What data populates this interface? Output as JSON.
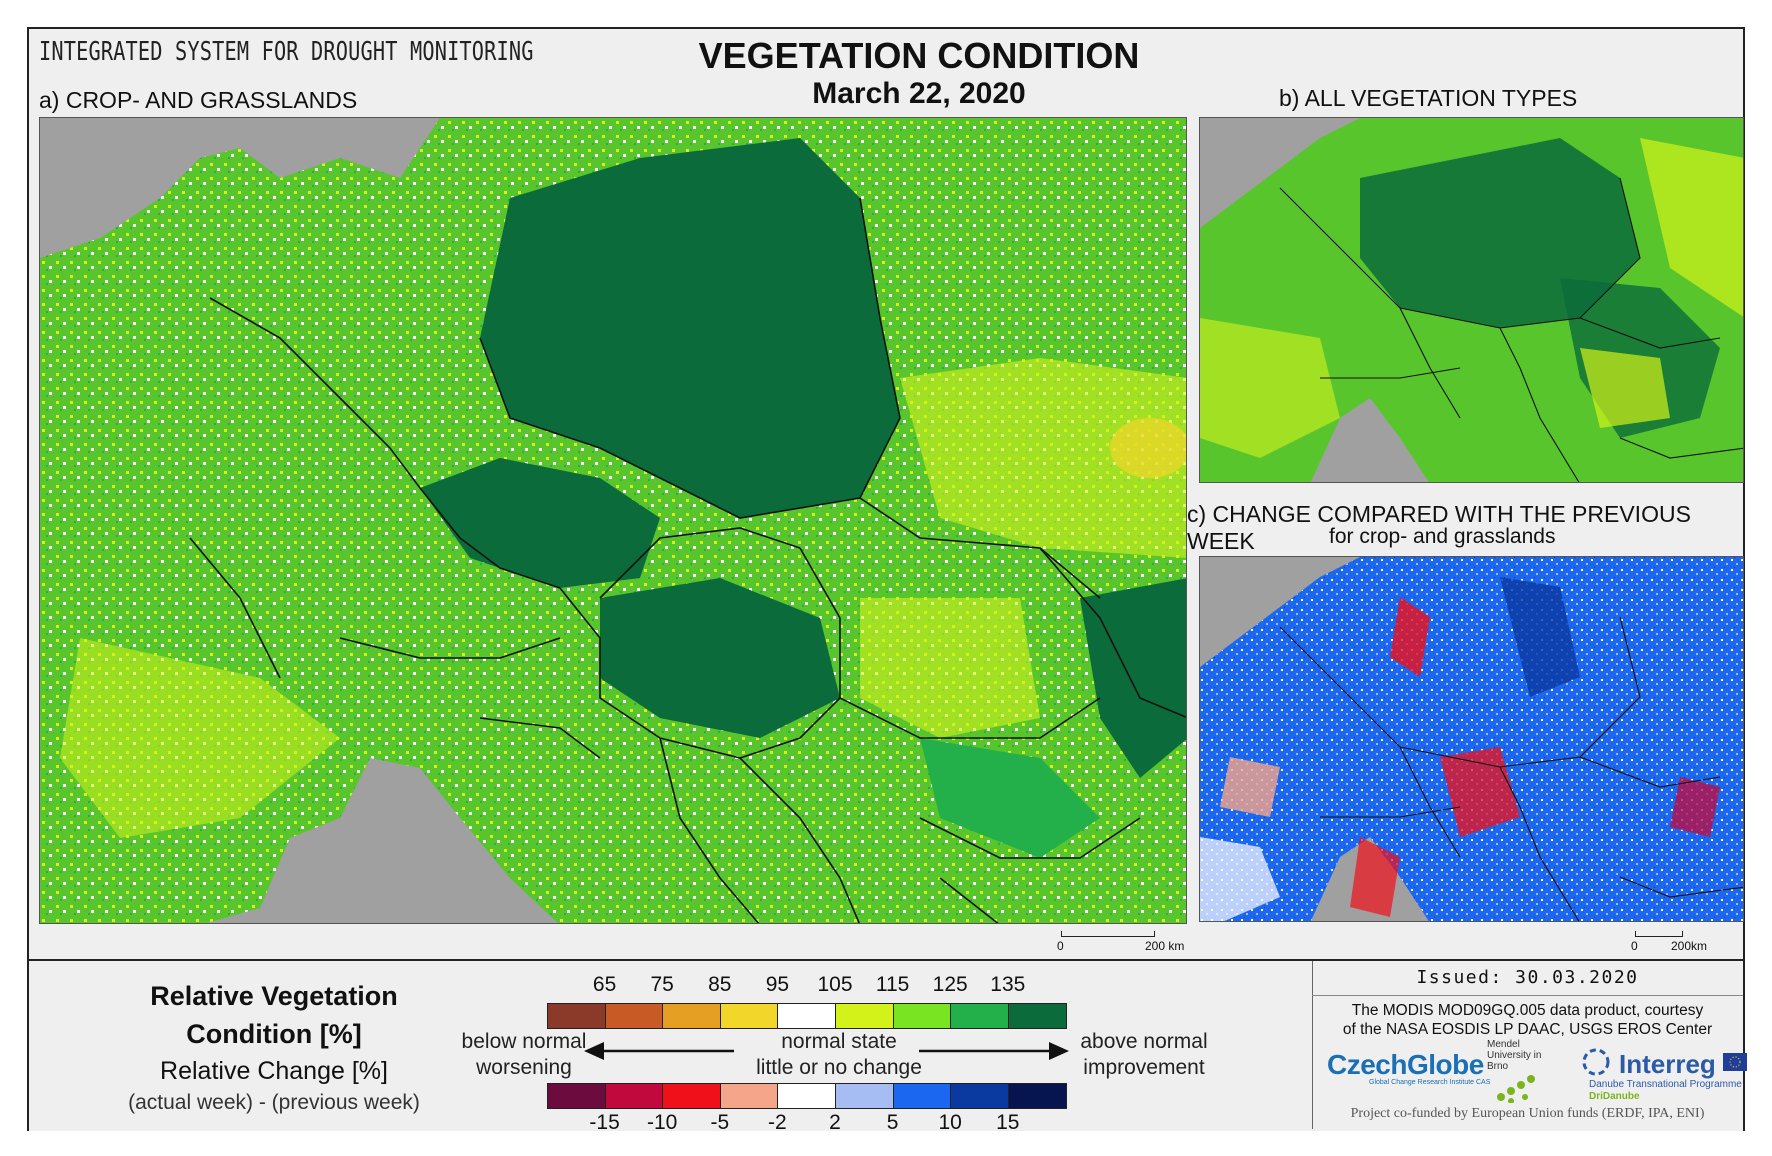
{
  "header": {
    "system_title": "INTEGRATED SYSTEM FOR DROUGHT MONITORING",
    "main_title": "VEGETATION CONDITION",
    "date": "March 22, 2020"
  },
  "panels": {
    "a_label": "a) CROP- AND GRASSLANDS",
    "b_label": "b) ALL VEGETATION TYPES",
    "c_label": "c) CHANGE COMPARED WITH THE PREVIOUS WEEK",
    "c_sublabel": "for crop- and grasslands"
  },
  "scalebars": {
    "main_zero": "0",
    "main_label": "200 km",
    "small_zero": "0",
    "small_label": "200km"
  },
  "legend": {
    "rvc_title": "Relative Vegetation Condition [%]",
    "rc_title": "Relative Change [%]",
    "rc_subtitle": "(actual week) - (previous week)",
    "rvc_ticks": [
      "65",
      "75",
      "85",
      "95",
      "105",
      "115",
      "125",
      "135"
    ],
    "rvc_colors": [
      "#8b3a2a",
      "#c85a25",
      "#e5a024",
      "#f3d62a",
      "#ffffff",
      "#d2f21a",
      "#79e421",
      "#23b04a",
      "#0b6b3a"
    ],
    "rc_ticks": [
      "-15",
      "-10",
      "-5",
      "-2",
      "2",
      "5",
      "10",
      "15"
    ],
    "rc_colors": [
      "#6b0b3e",
      "#c2093d",
      "#f0101a",
      "#f4a58a",
      "#ffffff",
      "#a6bdf4",
      "#1c67f0",
      "#0a3aa0",
      "#061550"
    ],
    "left_text_1": "below normal",
    "left_text_2": "worsening",
    "mid_text_1": "normal state",
    "mid_text_2": "little or no change",
    "right_text_1": "above normal",
    "right_text_2": "improvement"
  },
  "credits": {
    "issued": "Issued: 30.03.2020",
    "source_line_1": "The MODIS MOD09GQ.005 data product, courtesy",
    "source_line_2": "of the NASA EOSDIS LP DAAC, USGS EROS Center",
    "czechglobe": "CzechGlobe",
    "czechglobe_sub": "Global Change Research Institute CAS",
    "mendel": "Mendel University in Brno",
    "interreg": "Interreg",
    "interreg_sub": "Danube Transnational Programme",
    "dridanube": "DriDanube",
    "cofunded": "Project co-funded by European Union funds (ERDF, IPA, ENI)"
  }
}
